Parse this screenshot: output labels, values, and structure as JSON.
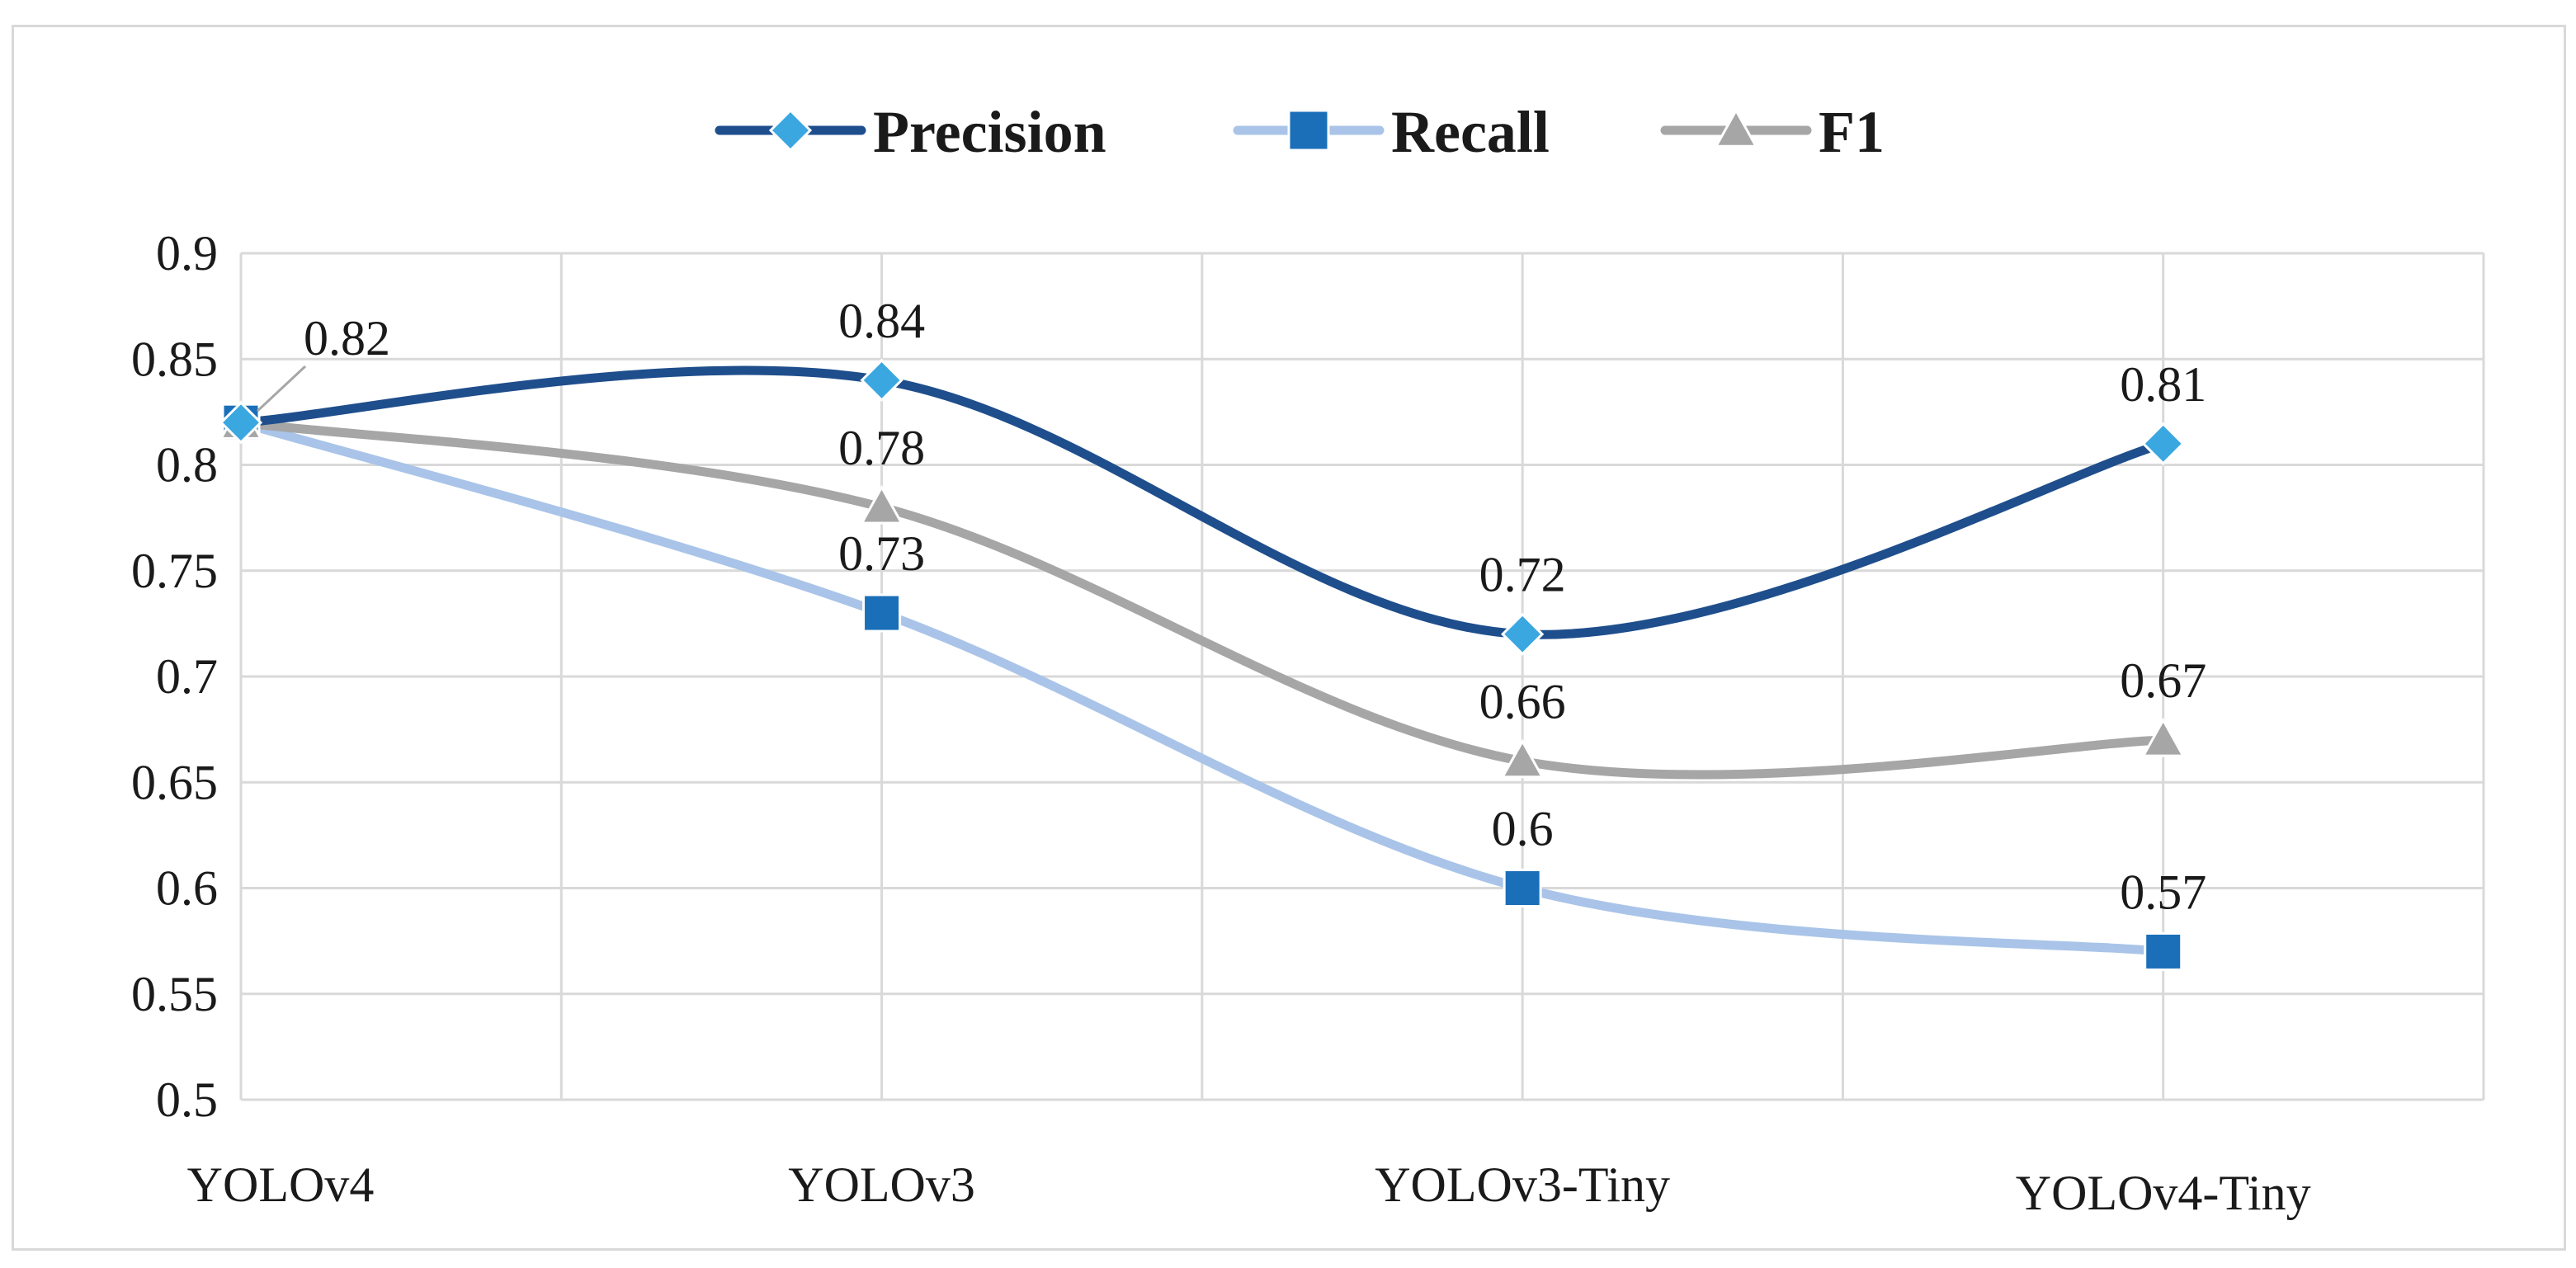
{
  "chart_data": {
    "type": "line",
    "title": "",
    "xlabel": "",
    "ylabel": "",
    "categories": [
      "YOLOv4",
      "YOLOv3",
      "YOLOv3-Tiny",
      "YOLOv4-Tiny"
    ],
    "ylim": [
      0.5,
      0.9
    ],
    "yticks": [
      0.5,
      0.55,
      0.6,
      0.65,
      0.7,
      0.75,
      0.8,
      0.85,
      0.9
    ],
    "ytick_labels": [
      "0.5",
      "0.55",
      "0.6",
      "0.65",
      "0.7",
      "0.75",
      "0.8",
      "0.85",
      "0.9"
    ],
    "grid": true,
    "smooth": true,
    "legend_position": "top-center",
    "series": [
      {
        "name": "Precision",
        "values": [
          0.82,
          0.84,
          0.72,
          0.81
        ],
        "labels": [
          "",
          "0.84",
          "0.72",
          "0.81"
        ],
        "line_color": "#1f4e8c",
        "marker_color": "#3ba7e0",
        "marker": "diamond"
      },
      {
        "name": "Recall",
        "values": [
          0.82,
          0.73,
          0.6,
          0.57
        ],
        "labels": [
          "",
          "0.73",
          "0.6",
          "0.57"
        ],
        "line_color": "#a9c4e8",
        "marker_color": "#1a6fb8",
        "marker": "square"
      },
      {
        "name": "F1",
        "values": [
          0.82,
          0.78,
          0.66,
          0.67
        ],
        "labels": [
          "0.82",
          "0.78",
          "0.66",
          "0.67"
        ],
        "line_color": "#a6a6a6",
        "marker_color": "#a6a6a6",
        "marker": "triangle"
      }
    ]
  }
}
